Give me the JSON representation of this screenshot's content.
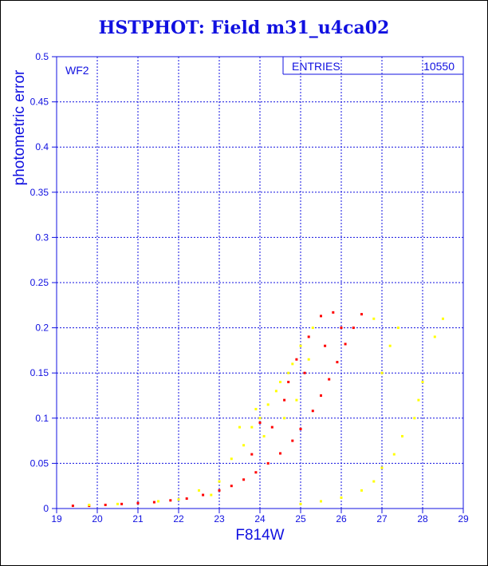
{
  "chart_data": {
    "type": "scatter",
    "title": "HSTPHOT: Field m31_u4ca02",
    "xlabel": "F814W",
    "ylabel": "photometric error",
    "xlim": [
      19,
      29
    ],
    "ylim": [
      0,
      0.5
    ],
    "xticks": [
      "19",
      "20",
      "21",
      "22",
      "23",
      "24",
      "25",
      "26",
      "27",
      "28",
      "29"
    ],
    "yticks": [
      "0",
      "0.05",
      "0.1",
      "0.15",
      "0.2",
      "0.25",
      "0.3",
      "0.35",
      "0.4",
      "0.45",
      "0.5"
    ],
    "grid": true,
    "panel_label": "WF2",
    "stats_box": {
      "label": "ENTRIES",
      "value": "10550"
    },
    "colors": {
      "axis": "#1010e0",
      "grid": "#1010e0",
      "main_locus": "#ff0000",
      "scatter": "#ffff00"
    },
    "series": [
      {
        "color": "#ff0000",
        "points": [
          [
            19.4,
            0.003
          ],
          [
            19.8,
            0.003
          ],
          [
            20.2,
            0.004
          ],
          [
            20.6,
            0.005
          ],
          [
            21.0,
            0.006
          ],
          [
            21.4,
            0.007
          ],
          [
            21.8,
            0.009
          ],
          [
            22.2,
            0.011
          ],
          [
            22.6,
            0.015
          ],
          [
            23.0,
            0.02
          ],
          [
            23.3,
            0.025
          ],
          [
            23.6,
            0.032
          ],
          [
            23.9,
            0.04
          ],
          [
            24.2,
            0.05
          ],
          [
            24.5,
            0.061
          ],
          [
            24.8,
            0.075
          ],
          [
            25.0,
            0.088
          ],
          [
            25.3,
            0.108
          ],
          [
            25.5,
            0.125
          ],
          [
            25.7,
            0.143
          ],
          [
            25.9,
            0.162
          ],
          [
            26.1,
            0.182
          ],
          [
            26.3,
            0.2
          ],
          [
            26.5,
            0.215
          ],
          [
            24.7,
            0.14
          ],
          [
            24.9,
            0.165
          ],
          [
            25.2,
            0.19
          ],
          [
            25.5,
            0.213
          ],
          [
            25.8,
            0.217
          ],
          [
            24.3,
            0.09
          ],
          [
            23.8,
            0.06
          ],
          [
            24.0,
            0.095
          ],
          [
            24.6,
            0.12
          ],
          [
            25.1,
            0.15
          ],
          [
            25.6,
            0.18
          ],
          [
            26.0,
            0.2
          ]
        ]
      },
      {
        "color": "#ffff00",
        "points": [
          [
            22.0,
            0.01
          ],
          [
            22.5,
            0.02
          ],
          [
            23.0,
            0.03
          ],
          [
            23.3,
            0.055
          ],
          [
            23.6,
            0.07
          ],
          [
            23.8,
            0.09
          ],
          [
            24.0,
            0.1
          ],
          [
            24.2,
            0.115
          ],
          [
            24.4,
            0.13
          ],
          [
            24.5,
            0.14
          ],
          [
            24.7,
            0.15
          ],
          [
            24.8,
            0.16
          ],
          [
            25.0,
            0.18
          ],
          [
            25.3,
            0.2
          ],
          [
            23.5,
            0.09
          ],
          [
            24.1,
            0.08
          ],
          [
            24.9,
            0.12
          ],
          [
            25.2,
            0.165
          ],
          [
            23.9,
            0.11
          ],
          [
            24.6,
            0.1
          ],
          [
            25.0,
            0.005
          ],
          [
            25.5,
            0.008
          ],
          [
            26.0,
            0.012
          ],
          [
            26.5,
            0.02
          ],
          [
            26.8,
            0.03
          ],
          [
            27.0,
            0.045
          ],
          [
            27.3,
            0.06
          ],
          [
            27.5,
            0.08
          ],
          [
            27.8,
            0.1
          ],
          [
            28.0,
            0.14
          ],
          [
            27.2,
            0.18
          ],
          [
            27.4,
            0.2
          ],
          [
            28.3,
            0.19
          ],
          [
            28.5,
            0.21
          ],
          [
            27.9,
            0.12
          ],
          [
            26.8,
            0.21
          ],
          [
            27.0,
            0.15
          ],
          [
            22.8,
            0.015
          ],
          [
            21.5,
            0.008
          ],
          [
            20.5,
            0.005
          ],
          [
            19.8,
            0.004
          ]
        ]
      }
    ]
  }
}
